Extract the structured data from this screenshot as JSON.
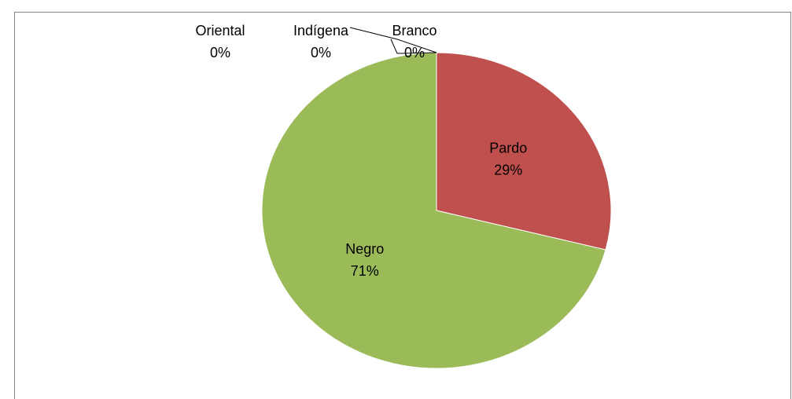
{
  "chart_data": {
    "type": "pie",
    "categories": [
      "Branco",
      "Pardo",
      "Negro",
      "Indígena",
      "Oriental"
    ],
    "values": [
      0,
      29,
      71,
      0,
      0
    ],
    "value_labels": [
      "0%",
      "29%",
      "71%",
      "0%",
      "0%"
    ],
    "colors": [
      "#4f81bd",
      "#c0504d",
      "#9bbb59",
      "#8064a2",
      "#4bacc6"
    ]
  }
}
